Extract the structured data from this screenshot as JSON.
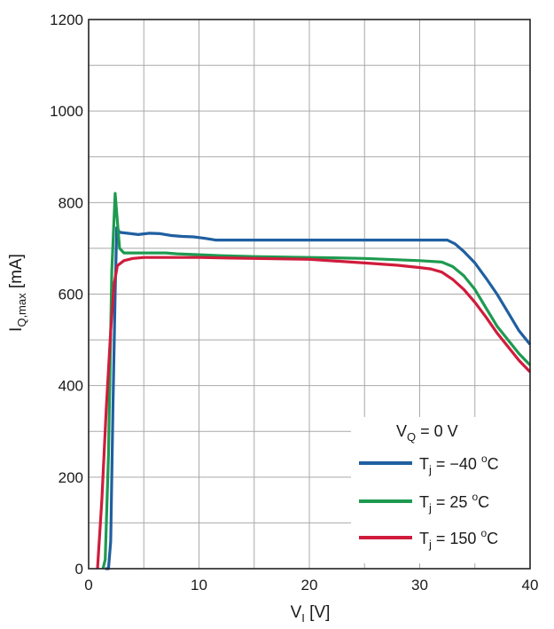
{
  "chart_data": {
    "type": "line",
    "x_axis": {
      "label_main": "V",
      "label_sub": "I",
      "label_unit": " [V]",
      "range": [
        0,
        40
      ],
      "ticks": [
        0,
        10,
        20,
        30,
        40
      ],
      "tick_labels": [
        "0",
        "10",
        "20",
        "30",
        "40"
      ]
    },
    "y_axis": {
      "label_main": "I",
      "label_sub": "Q,max",
      "label_unit": " [mA]",
      "range": [
        0,
        1200
      ],
      "ticks": [
        0,
        200,
        400,
        600,
        800,
        1000,
        1200
      ],
      "tick_labels": [
        "0",
        "200",
        "400",
        "600",
        "800",
        "1000",
        "1200"
      ]
    },
    "grid": true,
    "legend": {
      "placement": "bottom-right",
      "title_main": "V",
      "title_sub": "Q",
      "title_rest": " = 0 V"
    },
    "series": [
      {
        "name_main": "T",
        "name_sub": "j",
        "name_value": " = −40 ",
        "name_sup": "o",
        "name_unit": "C",
        "color": "#1f5fa0",
        "points": [
          [
            1.5,
            0
          ],
          [
            1.8,
            0
          ],
          [
            2.0,
            60
          ],
          [
            2.2,
            350
          ],
          [
            2.4,
            600
          ],
          [
            2.55,
            745
          ],
          [
            2.8,
            735
          ],
          [
            3.5,
            733
          ],
          [
            4.5,
            730
          ],
          [
            5.5,
            733
          ],
          [
            6.5,
            732
          ],
          [
            7.5,
            728
          ],
          [
            8.5,
            726
          ],
          [
            9.5,
            725
          ],
          [
            10.5,
            722
          ],
          [
            11.5,
            718
          ],
          [
            12.5,
            718
          ],
          [
            15,
            718
          ],
          [
            20,
            718
          ],
          [
            25,
            718
          ],
          [
            30,
            718
          ],
          [
            32.5,
            718
          ],
          [
            33.2,
            710
          ],
          [
            34,
            693
          ],
          [
            35,
            668
          ],
          [
            36,
            635
          ],
          [
            37,
            600
          ],
          [
            38,
            560
          ],
          [
            39,
            520
          ],
          [
            40,
            490
          ]
        ]
      },
      {
        "name_main": "T",
        "name_sub": "j",
        "name_value": " = 25 ",
        "name_sup": "o",
        "name_unit": "C",
        "color": "#1e9a50",
        "points": [
          [
            1.3,
            0
          ],
          [
            1.5,
            20
          ],
          [
            1.8,
            250
          ],
          [
            2.1,
            650
          ],
          [
            2.4,
            820
          ],
          [
            2.6,
            760
          ],
          [
            2.8,
            700
          ],
          [
            3.2,
            690
          ],
          [
            5,
            690
          ],
          [
            7,
            690
          ],
          [
            8,
            688
          ],
          [
            10,
            686
          ],
          [
            12,
            684
          ],
          [
            15,
            682
          ],
          [
            20,
            680
          ],
          [
            25,
            678
          ],
          [
            30,
            673
          ],
          [
            32,
            670
          ],
          [
            33,
            660
          ],
          [
            34,
            640
          ],
          [
            35,
            610
          ],
          [
            36,
            570
          ],
          [
            37,
            530
          ],
          [
            38,
            500
          ],
          [
            39,
            470
          ],
          [
            40,
            445
          ]
        ]
      },
      {
        "name_main": "T",
        "name_sub": "j",
        "name_value": " = 150 ",
        "name_sup": "o",
        "name_unit": "C",
        "color": "#d01c3c",
        "points": [
          [
            0.8,
            0
          ],
          [
            1.2,
            150
          ],
          [
            1.6,
            350
          ],
          [
            2.0,
            520
          ],
          [
            2.3,
            620
          ],
          [
            2.6,
            662
          ],
          [
            3.2,
            673
          ],
          [
            4,
            678
          ],
          [
            5,
            680
          ],
          [
            8,
            680
          ],
          [
            10,
            680
          ],
          [
            15,
            678
          ],
          [
            20,
            676
          ],
          [
            25,
            668
          ],
          [
            28,
            663
          ],
          [
            30,
            658
          ],
          [
            31,
            655
          ],
          [
            32,
            648
          ],
          [
            33,
            632
          ],
          [
            34,
            610
          ],
          [
            35,
            582
          ],
          [
            36,
            550
          ],
          [
            37,
            515
          ],
          [
            38,
            485
          ],
          [
            39,
            455
          ],
          [
            40,
            430
          ]
        ]
      }
    ]
  }
}
